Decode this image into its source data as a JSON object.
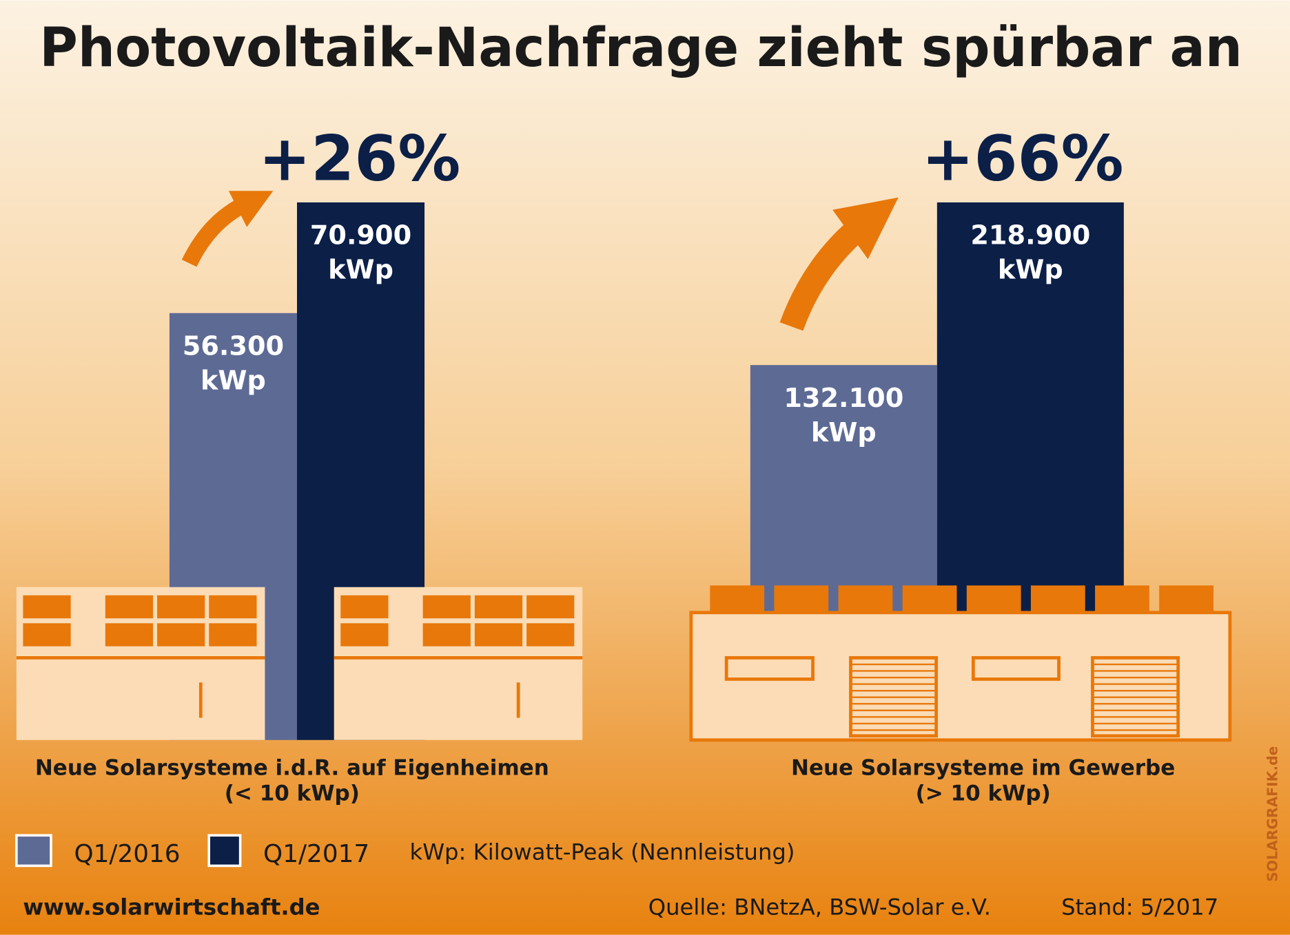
{
  "title": "Photovoltaik-Nachfrage zieht spürbar an",
  "chart_data": [
    {
      "type": "bar",
      "title": "Neue Solarsysteme i.d.R. auf Eigenheimen",
      "subtitle": "(< 10 kWp)",
      "annotation": "+26%",
      "unit": "kWp",
      "series": [
        {
          "name": "Q1/2016",
          "color": "#5d6a94",
          "values": [
            56300
          ],
          "value_labels": [
            "56.300"
          ]
        },
        {
          "name": "Q1/2017",
          "color": "#0b1f47",
          "values": [
            70900
          ],
          "value_labels": [
            "70.900"
          ]
        }
      ]
    },
    {
      "type": "bar",
      "title": "Neue Solarsysteme im Gewerbe",
      "subtitle": "(> 10 kWp)",
      "annotation": "+66%",
      "unit": "kWp",
      "series": [
        {
          "color": "#5d6a94",
          "values": [
            132100
          ],
          "value_labels": [
            "132.100"
          ]
        },
        {
          "color": "#0b1f47",
          "values": [
            218900
          ],
          "value_labels": [
            "218.900"
          ]
        }
      ]
    }
  ],
  "legend_note": "kWp:  Kilowatt-Peak (Nennleistung)",
  "footer": {
    "website": "www.solarwirtschaft.de",
    "source": "Quelle: BNetzA, BSW-Solar e.V.",
    "date": "Stand: 5/2017"
  },
  "credit": "SOLARGRAFIK.de"
}
